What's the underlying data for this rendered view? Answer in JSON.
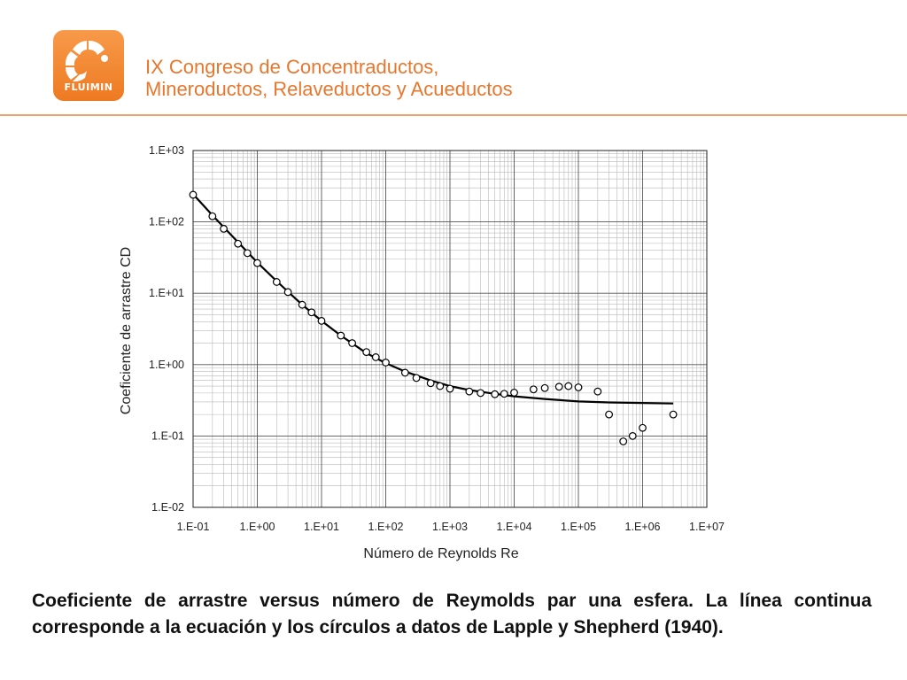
{
  "header": {
    "logo_text": "FLUIMIN",
    "title_line1": "IX Congreso de Concentraductos,",
    "title_line2": "Mineroductos, Relaveductos y Acueductos"
  },
  "caption": {
    "line1": " Coeficiente de arrastre versus número de Reymolds par una esfera. La línea continua",
    "line2": "corresponde a la ecuación y los círculos a datos de Lapple y Shepherd (1940)."
  },
  "chart_data": {
    "type": "scatter",
    "xlabel": "Número de Reynolds Re",
    "ylabel": "Coeficiente de arrastre CD",
    "xscale": "log",
    "yscale": "log",
    "xlim": [
      0.1,
      10000000
    ],
    "ylim": [
      0.01,
      1000
    ],
    "grid": true,
    "x_ticks": [
      "1.E-01",
      "1.E+00",
      "1.E+01",
      "1.E+02",
      "1.E+03",
      "1.E+04",
      "1.E+05",
      "1.E+06",
      "1.E+07"
    ],
    "y_ticks": [
      "1.E-02",
      "1.E-01",
      "1.E+00",
      "1.E+01",
      "1.E+02",
      "1.E+03"
    ],
    "series": [
      {
        "kind": "line",
        "x": [
          0.1,
          0.2,
          0.5,
          1,
          2,
          5,
          10,
          20,
          50,
          100,
          200,
          500,
          1000,
          2000,
          5000,
          10000,
          30000,
          100000,
          300000,
          1000000,
          3000000
        ],
        "y": [
          245,
          124,
          52,
          27,
          14.8,
          6.9,
          4.1,
          2.55,
          1.45,
          1.05,
          0.8,
          0.6,
          0.5,
          0.44,
          0.39,
          0.36,
          0.33,
          0.305,
          0.295,
          0.29,
          0.285
        ]
      },
      {
        "kind": "scatter",
        "x": [
          0.1,
          0.2,
          0.3,
          0.5,
          0.7,
          1,
          2,
          3,
          5,
          7,
          10,
          20,
          30,
          50,
          70,
          100,
          200,
          300,
          500,
          700,
          1000,
          2000,
          3000,
          5000,
          7000,
          10000,
          20000,
          30000,
          50000,
          70000,
          100000,
          200000,
          300000,
          500000,
          700000,
          1000000,
          3000000
        ],
        "y": [
          240,
          120,
          80,
          49.5,
          36.5,
          26.5,
          14.4,
          10.4,
          6.9,
          5.4,
          4.1,
          2.55,
          2.0,
          1.5,
          1.27,
          1.07,
          0.77,
          0.65,
          0.55,
          0.5,
          0.46,
          0.42,
          0.4,
          0.385,
          0.39,
          0.405,
          0.45,
          0.47,
          0.49,
          0.5,
          0.48,
          0.42,
          0.2,
          0.084,
          0.1,
          0.13,
          0.2
        ]
      }
    ]
  }
}
